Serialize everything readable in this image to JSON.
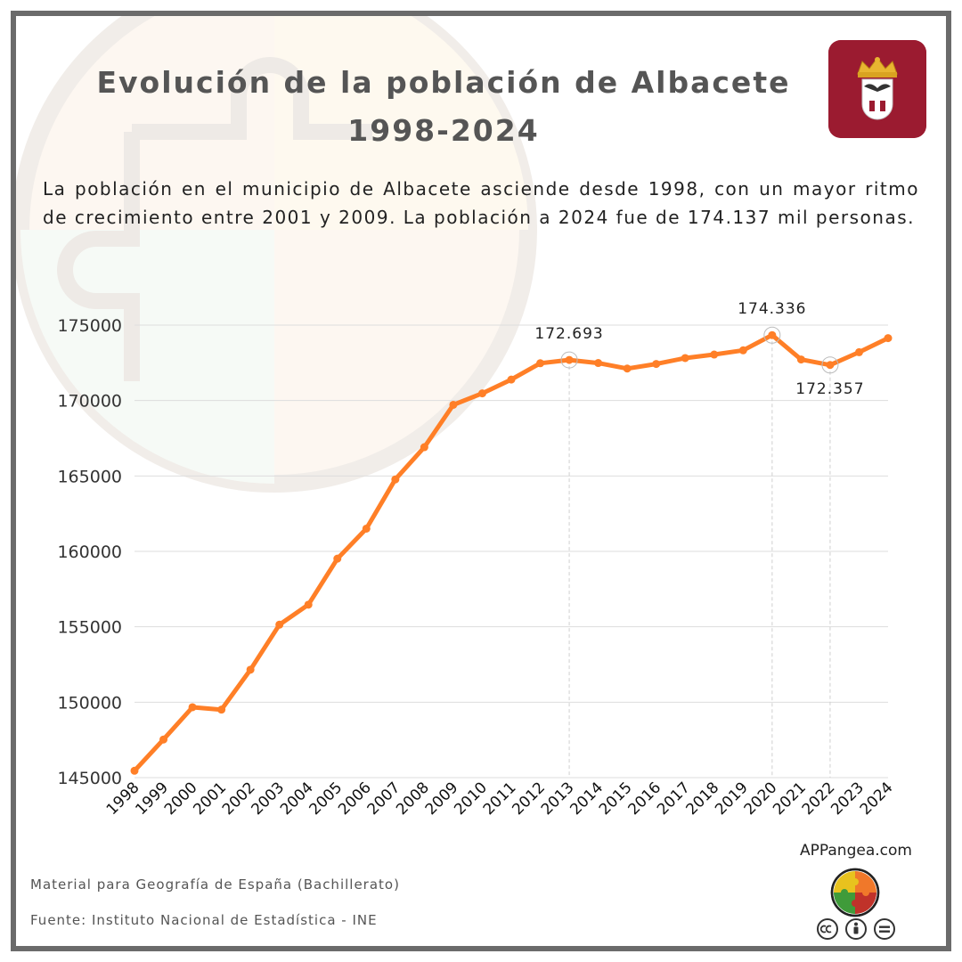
{
  "header": {
    "title_line1": "Evolución de la población de Albacete",
    "title_line2": "1998-2024",
    "subtitle": "La población en el municipio de Albacete asciende desde 1998, con un mayor ritmo de crecimiento entre 2001 y 2009. La población a 2024 fue de 174.137 mil personas."
  },
  "footer": {
    "credit": "Material para Geografía de España (Bachillerato)",
    "source": "Fuente: Instituto Nacional de Estadística - INE",
    "site": "APPangea.com"
  },
  "icons": {
    "coat_of_arms": "albacete-coat-of-arms-icon",
    "logo": "appangea-puzzle-logo-icon",
    "license": [
      "cc-icon",
      "by-icon",
      "nd-icon"
    ]
  },
  "colors": {
    "line": "#ff7f27",
    "coat_background": "#9b1b30",
    "frame": "#6b6b6b",
    "title": "#555555"
  },
  "chart_data": {
    "type": "line",
    "title": "",
    "xlabel": "",
    "ylabel": "",
    "x": [
      "1998",
      "1999",
      "2000",
      "2001",
      "2002",
      "2003",
      "2004",
      "2005",
      "2006",
      "2007",
      "2008",
      "2009",
      "2010",
      "2011",
      "2012",
      "2013",
      "2014",
      "2015",
      "2016",
      "2017",
      "2018",
      "2019",
      "2020",
      "2021",
      "2022",
      "2023",
      "2024"
    ],
    "series": [
      {
        "values": [
          145454,
          147527,
          149667,
          149507,
          152155,
          155142,
          156466,
          159518,
          161508,
          164771,
          166909,
          169716,
          170475,
          171390,
          172472,
          172693,
          172487,
          172121,
          172426,
          172816,
          173050,
          173329,
          174336,
          172722,
          172357,
          173205,
          174137
        ]
      }
    ],
    "ylim": [
      145000,
      175000
    ],
    "yticks": [
      145000,
      150000,
      155000,
      160000,
      165000,
      170000,
      175000
    ],
    "grid": "horizontal",
    "legend": "none",
    "annotations": [
      {
        "x": "2013",
        "label": "172.693",
        "placement": "above"
      },
      {
        "x": "2020",
        "label": "174.336",
        "placement": "above"
      },
      {
        "x": "2022",
        "label": "172.357",
        "placement": "below"
      }
    ]
  }
}
